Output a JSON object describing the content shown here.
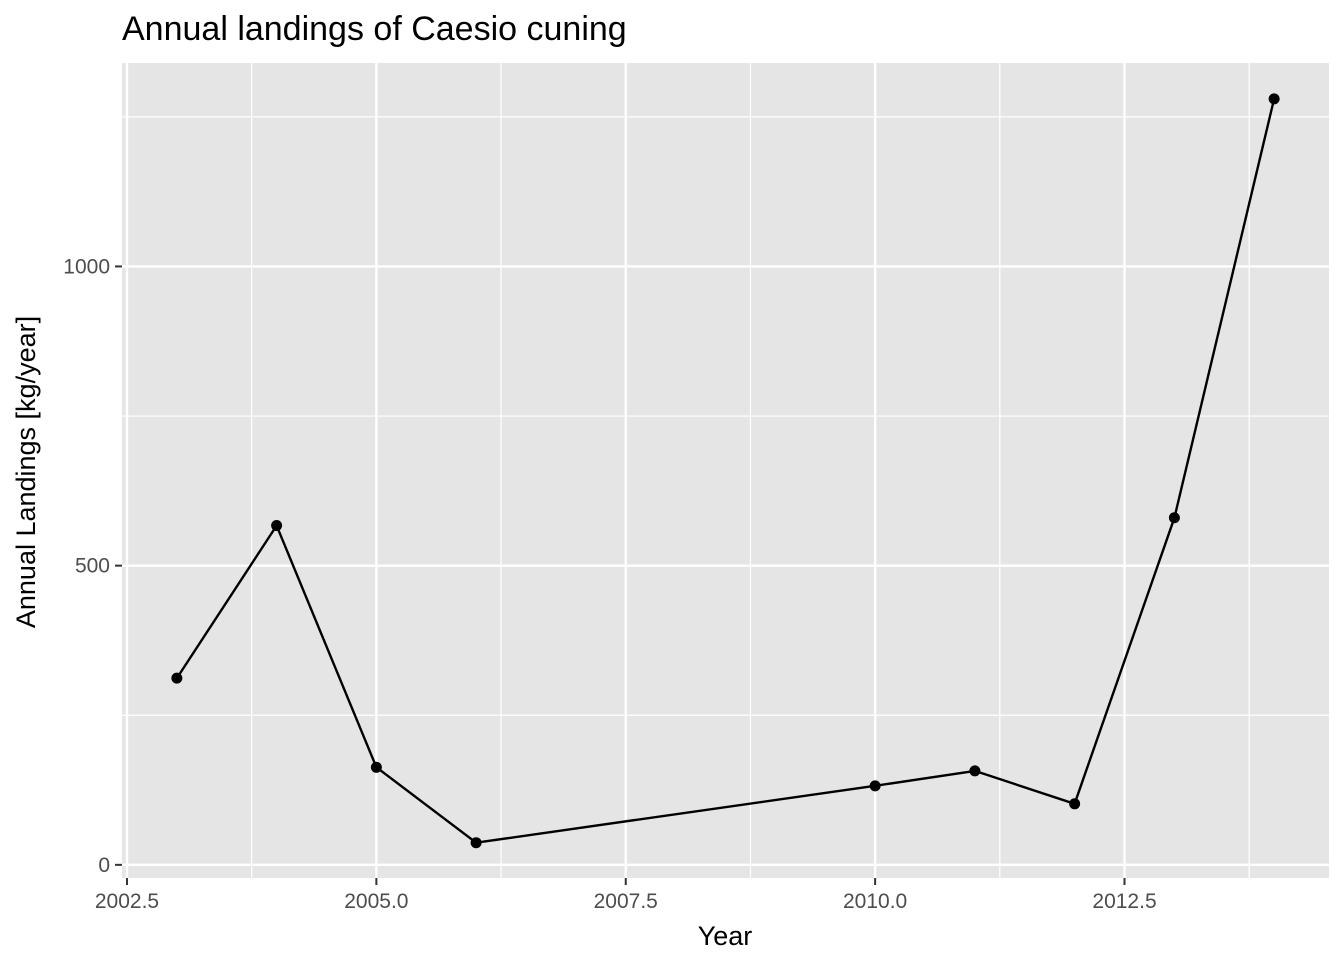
{
  "chart_data": {
    "type": "line",
    "title": "Annual landings of Caesio cuning",
    "xlabel": "Year",
    "ylabel": "Annual Landings [kg/year]",
    "x_ticks": [
      "2002.5",
      "2005.0",
      "2007.5",
      "2010.0",
      "2012.5"
    ],
    "y_ticks": [
      "0",
      "500",
      "1000"
    ],
    "xlim": [
      2002.45,
      2014.55
    ],
    "ylim": [
      -22,
      1340
    ],
    "grid": true,
    "legend": "none",
    "series": [
      {
        "x": [
          2003,
          2004,
          2005,
          2006,
          2010,
          2011,
          2012,
          2013,
          2014
        ],
        "y": [
          312,
          567,
          163,
          37,
          132,
          157,
          102,
          580,
          1280
        ]
      }
    ],
    "colors": {
      "panel": "#e5e5e5",
      "grid": "#ffffff",
      "line": "#000000",
      "tick": "#333333",
      "tick_label": "#4d4d4d"
    }
  }
}
